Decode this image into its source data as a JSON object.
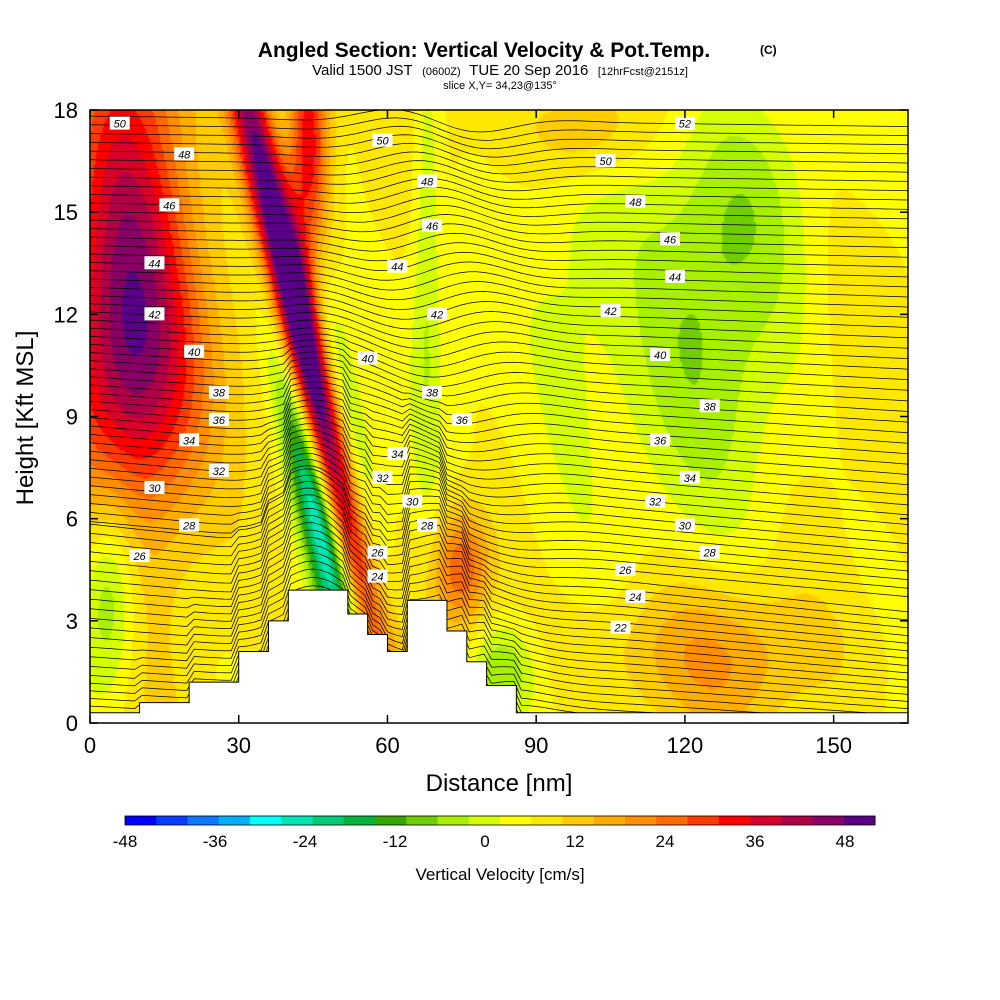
{
  "chart_data": {
    "type": "heatmap",
    "title": "Angled Section: Vertical Velocity & Pot.Temp.",
    "title_mark": "(C)",
    "subtitle": {
      "part1": "Valid 1500 JST",
      "part2": "(0600Z)",
      "part3": "TUE 20 Sep 2016",
      "part4": "[12hrFcst@2151z]"
    },
    "slice_label": "slice X,Y= 34,23@135°",
    "xlabel": "Distance [nm]",
    "ylabel": "Height [Kft MSL]",
    "xlim": [
      0,
      165
    ],
    "ylim": [
      0,
      18
    ],
    "x_ticks": [
      0,
      30,
      60,
      90,
      120,
      150
    ],
    "y_ticks": [
      0,
      3,
      6,
      9,
      12,
      15,
      18
    ],
    "colorbar": {
      "label": "Vertical Velocity [cm/s]",
      "min": -48,
      "max": 52,
      "step": 4,
      "tick_values": [
        -48,
        -36,
        -24,
        -12,
        0,
        12,
        24,
        36,
        48
      ],
      "colors": [
        "#0000ff",
        "#0a3cff",
        "#0f78ff",
        "#00b0ff",
        "#00ffff",
        "#00e7b4",
        "#00cd78",
        "#00b43c",
        "#35a700",
        "#6fcd00",
        "#a9ef00",
        "#d4ff00",
        "#ffff00",
        "#ffe800",
        "#ffcc00",
        "#ffae00",
        "#ff8e00",
        "#ff6a00",
        "#ff3a00",
        "#ff0000",
        "#d8002a",
        "#b00048",
        "#880066",
        "#5a0088"
      ]
    },
    "terrain": [
      [
        0,
        0.3
      ],
      [
        10,
        0.3
      ],
      [
        10,
        0.6
      ],
      [
        20,
        0.6
      ],
      [
        20,
        1.2
      ],
      [
        30,
        1.2
      ],
      [
        30,
        2.1
      ],
      [
        36,
        2.1
      ],
      [
        36,
        3
      ],
      [
        40,
        3
      ],
      [
        40,
        3.9
      ],
      [
        52,
        3.9
      ],
      [
        52,
        3.2
      ],
      [
        56,
        3.2
      ],
      [
        56,
        2.6
      ],
      [
        60,
        2.6
      ],
      [
        60,
        2.1
      ],
      [
        64,
        2.1
      ],
      [
        64,
        3.6
      ],
      [
        72,
        3.6
      ],
      [
        72,
        2.7
      ],
      [
        76,
        2.7
      ],
      [
        76,
        1.8
      ],
      [
        80,
        1.8
      ],
      [
        80,
        1.1
      ],
      [
        86,
        1.1
      ],
      [
        86,
        0.3
      ],
      [
        165,
        0.3
      ]
    ],
    "isentropes": [
      {
        "value": 22,
        "label_x": 107,
        "label_y": 2.8
      },
      {
        "value": 24,
        "label_x": 58,
        "label_y": 4.3
      },
      {
        "value": 24,
        "label_x": 110,
        "label_y": 3.7
      },
      {
        "value": 26,
        "label_x": 10,
        "label_y": 4.9
      },
      {
        "value": 26,
        "label_x": 58,
        "label_y": 5.0
      },
      {
        "value": 26,
        "label_x": 108,
        "label_y": 4.5
      },
      {
        "value": 28,
        "label_x": 20,
        "label_y": 5.8
      },
      {
        "value": 28,
        "label_x": 68,
        "label_y": 5.8
      },
      {
        "value": 28,
        "label_x": 125,
        "label_y": 5.0
      },
      {
        "value": 30,
        "label_x": 13,
        "label_y": 6.9
      },
      {
        "value": 30,
        "label_x": 65,
        "label_y": 6.5
      },
      {
        "value": 30,
        "label_x": 120,
        "label_y": 5.8
      },
      {
        "value": 32,
        "label_x": 26,
        "label_y": 7.4
      },
      {
        "value": 32,
        "label_x": 59,
        "label_y": 7.2
      },
      {
        "value": 32,
        "label_x": 114,
        "label_y": 6.5
      },
      {
        "value": 34,
        "label_x": 20,
        "label_y": 8.3
      },
      {
        "value": 34,
        "label_x": 62,
        "label_y": 7.9
      },
      {
        "value": 34,
        "label_x": 121,
        "label_y": 7.2
      },
      {
        "value": 36,
        "label_x": 26,
        "label_y": 8.9
      },
      {
        "value": 36,
        "label_x": 75,
        "label_y": 8.9
      },
      {
        "value": 36,
        "label_x": 115,
        "label_y": 8.3
      },
      {
        "value": 38,
        "label_x": 26,
        "label_y": 9.7
      },
      {
        "value": 38,
        "label_x": 69,
        "label_y": 9.7
      },
      {
        "value": 38,
        "label_x": 125,
        "label_y": 9.3
      },
      {
        "value": 40,
        "label_x": 21,
        "label_y": 10.9
      },
      {
        "value": 40,
        "label_x": 56,
        "label_y": 10.7
      },
      {
        "value": 40,
        "label_x": 115,
        "label_y": 10.8
      },
      {
        "value": 42,
        "label_x": 13,
        "label_y": 12.0
      },
      {
        "value": 42,
        "label_x": 70,
        "label_y": 12.0
      },
      {
        "value": 42,
        "label_x": 105,
        "label_y": 12.1
      },
      {
        "value": 44,
        "label_x": 13,
        "label_y": 13.5
      },
      {
        "value": 44,
        "label_x": 62,
        "label_y": 13.4
      },
      {
        "value": 44,
        "label_x": 118,
        "label_y": 13.1
      },
      {
        "value": 46,
        "label_x": 16,
        "label_y": 15.2
      },
      {
        "value": 46,
        "label_x": 69,
        "label_y": 14.6
      },
      {
        "value": 46,
        "label_x": 117,
        "label_y": 14.2
      },
      {
        "value": 48,
        "label_x": 19,
        "label_y": 16.7
      },
      {
        "value": 48,
        "label_x": 68,
        "label_y": 15.9
      },
      {
        "value": 48,
        "label_x": 110,
        "label_y": 15.3
      },
      {
        "value": 50,
        "label_x": 6,
        "label_y": 17.6
      },
      {
        "value": 50,
        "label_x": 59,
        "label_y": 17.1
      },
      {
        "value": 50,
        "label_x": 104,
        "label_y": 16.5
      },
      {
        "value": 52,
        "label_x": 120,
        "label_y": 17.6
      }
    ],
    "velocity_features": [
      {
        "name": "strong-updraft-ridge",
        "x": 42,
        "y": 12,
        "sx": 3,
        "sy": 7,
        "value": 52,
        "tilt": -0.55
      },
      {
        "name": "updraft-upper",
        "x": 44,
        "y": 17,
        "sx": 3,
        "sy": 3,
        "value": 30,
        "tilt": 0
      },
      {
        "name": "downdraft-core",
        "x": 46,
        "y": 6,
        "sx": 2.8,
        "sy": 3.5,
        "value": -34,
        "tilt": -0.5
      },
      {
        "name": "downdraft-upper",
        "x": 51,
        "y": 9,
        "sx": 3,
        "sy": 4,
        "value": -18,
        "tilt": -0.45
      },
      {
        "name": "left-updraft",
        "x": 7,
        "y": 14,
        "sx": 9,
        "sy": 5,
        "value": 30,
        "tilt": 0
      },
      {
        "name": "left-updraft-mid",
        "x": 12,
        "y": 10,
        "sx": 10,
        "sy": 3,
        "value": 20,
        "tilt": 0
      },
      {
        "name": "left-downdraft",
        "x": 4,
        "y": 4,
        "sx": 4,
        "sy": 2.2,
        "value": -16,
        "tilt": 0
      },
      {
        "name": "lee-updraft",
        "x": 75,
        "y": 4.6,
        "sx": 4,
        "sy": 1.2,
        "value": 20,
        "tilt": 0
      },
      {
        "name": "lee-downdraft",
        "x": 83,
        "y": 1.5,
        "sx": 5,
        "sy": 1,
        "value": -12,
        "tilt": 0
      },
      {
        "name": "right-downdraft-zone",
        "x": 122,
        "y": 11,
        "sx": 14,
        "sy": 4,
        "value": -9,
        "tilt": 0
      },
      {
        "name": "right-downdraft-upper",
        "x": 130,
        "y": 15.5,
        "sx": 10,
        "sy": 2.5,
        "value": -8,
        "tilt": 0
      },
      {
        "name": "mid-downdraft",
        "x": 97,
        "y": 12,
        "sx": 8,
        "sy": 5,
        "value": -6,
        "tilt": 0
      },
      {
        "name": "low-updraft",
        "x": 125,
        "y": 2.0,
        "sx": 20,
        "sy": 1.5,
        "value": 10,
        "tilt": 0
      },
      {
        "name": "upper-updraft",
        "x": 100,
        "y": 17.5,
        "sx": 8,
        "sy": 1.2,
        "value": 12,
        "tilt": 0
      },
      {
        "name": "channel-downdraft",
        "x": 68,
        "y": 14,
        "sx": 2,
        "sy": 5,
        "value": -8,
        "tilt": 0
      }
    ]
  }
}
